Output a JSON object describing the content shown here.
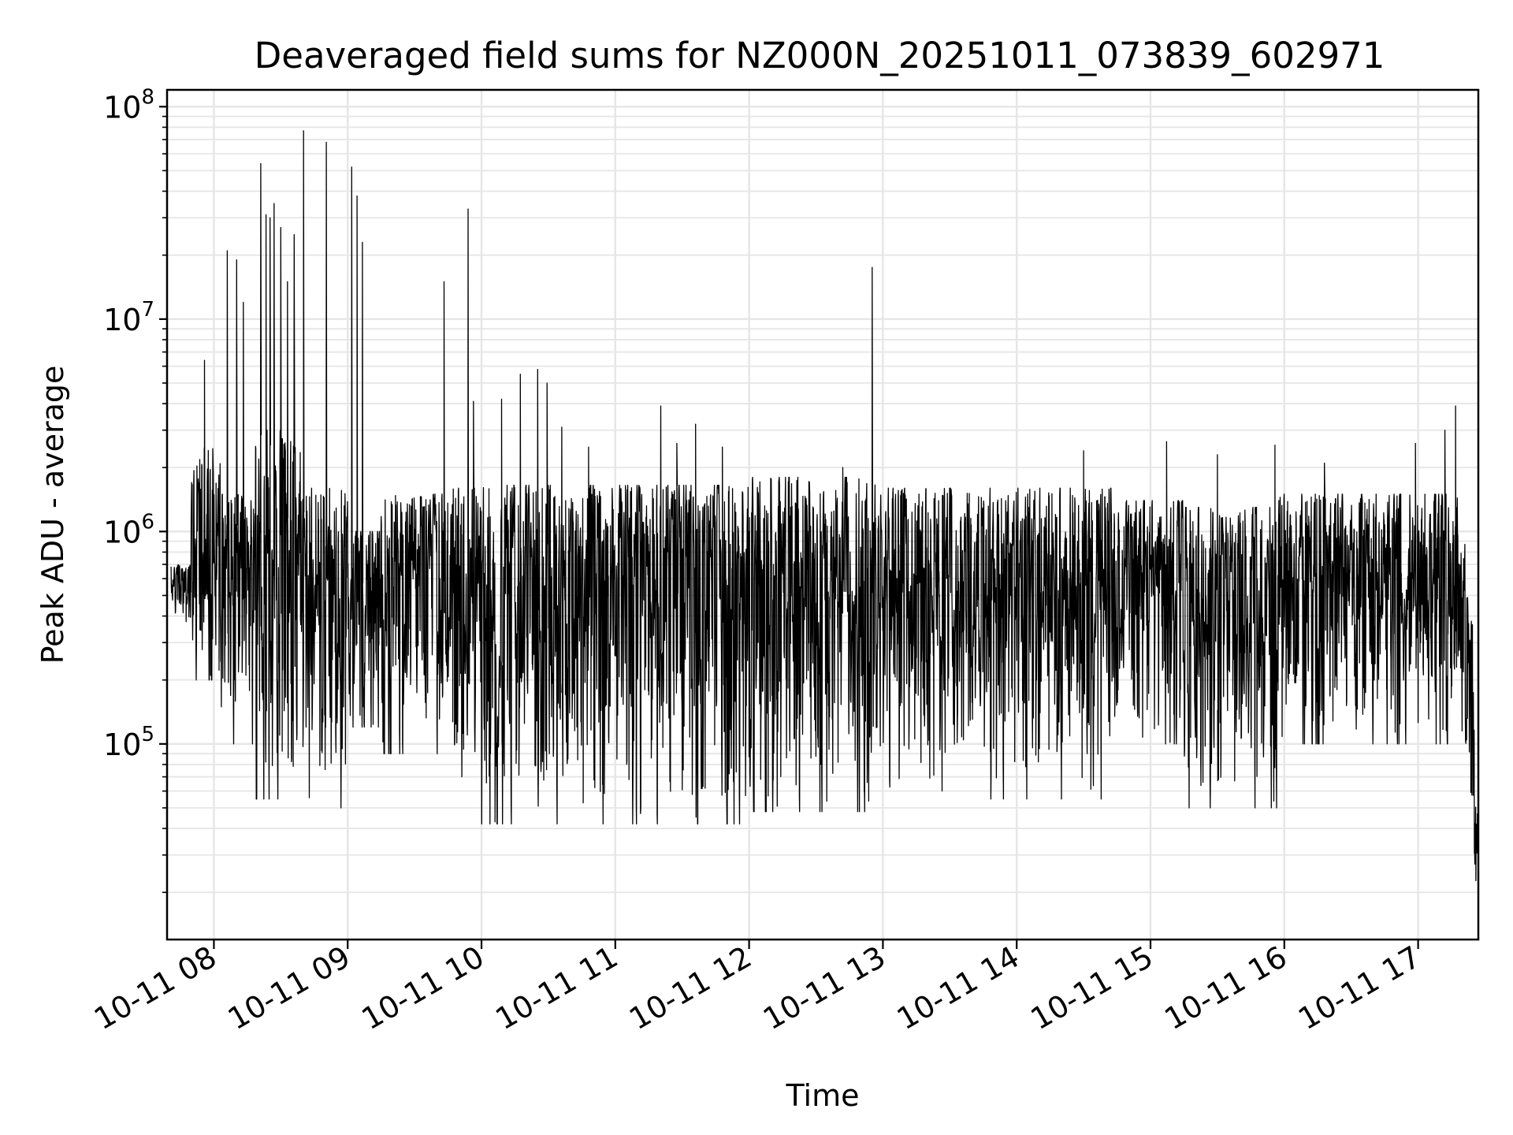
{
  "chart_data": {
    "type": "line",
    "title": "Deaveraged field sums for NZ000N_20251011_073839_602971",
    "xlabel": "Time",
    "ylabel": "Peak ADU - average",
    "yscale": "log",
    "ylim": [
      12000,
      120000000
    ],
    "xlim_hours": [
      7.65,
      17.45
    ],
    "grid": true,
    "line_color": "#000000",
    "grid_color": "#e6e6e6",
    "x_ticks": [
      {
        "hour": 8,
        "label": "10-11 08"
      },
      {
        "hour": 9,
        "label": "10-11 09"
      },
      {
        "hour": 10,
        "label": "10-11 10"
      },
      {
        "hour": 11,
        "label": "10-11 11"
      },
      {
        "hour": 12,
        "label": "10-11 12"
      },
      {
        "hour": 13,
        "label": "10-11 13"
      },
      {
        "hour": 14,
        "label": "10-11 14"
      },
      {
        "hour": 15,
        "label": "10-11 15"
      },
      {
        "hour": 16,
        "label": "10-11 16"
      },
      {
        "hour": 17,
        "label": "10-11 17"
      }
    ],
    "y_ticks": [
      {
        "value": 100000,
        "base": "10",
        "exp": "5"
      },
      {
        "value": 1000000,
        "base": "10",
        "exp": "6"
      },
      {
        "value": 10000000,
        "base": "10",
        "exp": "7"
      },
      {
        "value": 100000000,
        "base": "10",
        "exp": "8"
      }
    ],
    "envelope": [
      {
        "from": 7.65,
        "to": 7.83,
        "low": 350000,
        "high": 700000
      },
      {
        "from": 7.83,
        "to": 8.05,
        "low": 200000,
        "high": 2500000
      },
      {
        "from": 8.05,
        "to": 8.3,
        "low": 100000,
        "high": 1500000
      },
      {
        "from": 8.3,
        "to": 8.65,
        "low": 55000,
        "high": 3000000
      },
      {
        "from": 8.65,
        "to": 9.0,
        "low": 50000,
        "high": 1600000
      },
      {
        "from": 9.0,
        "to": 9.25,
        "low": 120000,
        "high": 1000000
      },
      {
        "from": 9.25,
        "to": 9.75,
        "low": 90000,
        "high": 1500000
      },
      {
        "from": 9.75,
        "to": 10.0,
        "low": 70000,
        "high": 1600000
      },
      {
        "from": 10.0,
        "to": 12.0,
        "low": 42000,
        "high": 1650000
      },
      {
        "from": 12.0,
        "to": 12.95,
        "low": 48000,
        "high": 1800000
      },
      {
        "from": 12.95,
        "to": 13.75,
        "low": 60000,
        "high": 1600000
      },
      {
        "from": 13.75,
        "to": 14.75,
        "low": 55000,
        "high": 1600000
      },
      {
        "from": 14.75,
        "to": 15.25,
        "low": 100000,
        "high": 1400000
      },
      {
        "from": 15.25,
        "to": 15.95,
        "low": 50000,
        "high": 1300000
      },
      {
        "from": 15.95,
        "to": 17.35,
        "low": 100000,
        "high": 1500000
      },
      {
        "from": 17.35,
        "to": 17.42,
        "low": 40000,
        "high": 500000
      },
      {
        "from": 17.42,
        "to": 17.45,
        "low": 18000,
        "high": 60000
      }
    ],
    "spikes": [
      {
        "t": 7.93,
        "v": 6400000
      },
      {
        "t": 8.1,
        "v": 21000000
      },
      {
        "t": 8.17,
        "v": 19000000
      },
      {
        "t": 8.22,
        "v": 12000000
      },
      {
        "t": 8.35,
        "v": 54000000
      },
      {
        "t": 8.39,
        "v": 31000000
      },
      {
        "t": 8.42,
        "v": 30000000
      },
      {
        "t": 8.45,
        "v": 35000000
      },
      {
        "t": 8.5,
        "v": 27000000
      },
      {
        "t": 8.55,
        "v": 15000000
      },
      {
        "t": 8.6,
        "v": 25000000
      },
      {
        "t": 8.67,
        "v": 77000000
      },
      {
        "t": 8.84,
        "v": 68000000
      },
      {
        "t": 9.03,
        "v": 52000000
      },
      {
        "t": 9.07,
        "v": 38000000
      },
      {
        "t": 9.11,
        "v": 23000000
      },
      {
        "t": 9.72,
        "v": 15000000
      },
      {
        "t": 9.9,
        "v": 33000000
      },
      {
        "t": 9.94,
        "v": 4100000
      },
      {
        "t": 10.15,
        "v": 4200000
      },
      {
        "t": 10.29,
        "v": 5500000
      },
      {
        "t": 10.42,
        "v": 5800000
      },
      {
        "t": 10.49,
        "v": 5000000
      },
      {
        "t": 10.6,
        "v": 3100000
      },
      {
        "t": 10.8,
        "v": 2500000
      },
      {
        "t": 11.34,
        "v": 3900000
      },
      {
        "t": 11.46,
        "v": 2600000
      },
      {
        "t": 11.6,
        "v": 3200000
      },
      {
        "t": 11.8,
        "v": 2500000
      },
      {
        "t": 12.7,
        "v": 2000000
      },
      {
        "t": 12.92,
        "v": 17500000
      },
      {
        "t": 14.5,
        "v": 2400000
      },
      {
        "t": 15.12,
        "v": 2650000
      },
      {
        "t": 15.5,
        "v": 2300000
      },
      {
        "t": 15.93,
        "v": 2550000
      },
      {
        "t": 16.3,
        "v": 2100000
      },
      {
        "t": 16.98,
        "v": 2600000
      },
      {
        "t": 17.2,
        "v": 3000000
      },
      {
        "t": 17.28,
        "v": 3900000
      }
    ]
  }
}
